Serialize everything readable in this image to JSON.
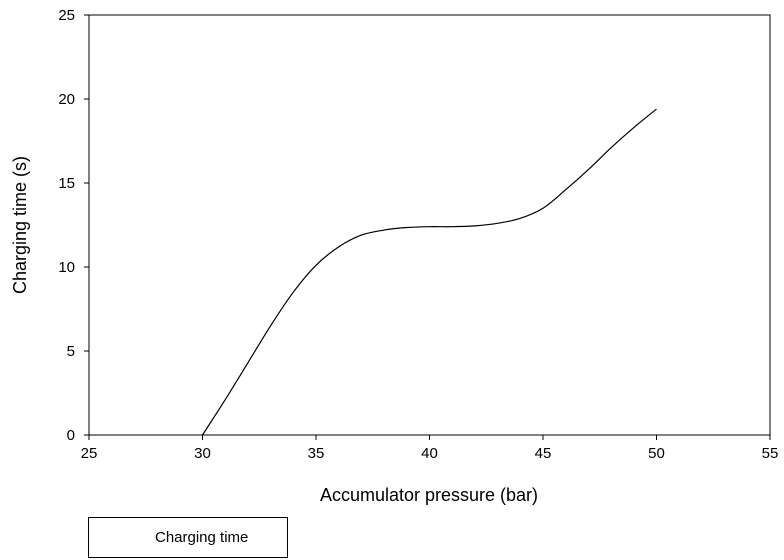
{
  "chart_data": {
    "type": "line",
    "title": "",
    "xlabel": "Accumulator pressure (bar)",
    "ylabel": "Charging time (s)",
    "xlim": [
      25,
      55
    ],
    "ylim": [
      0,
      25
    ],
    "xticks": [
      "25",
      "30",
      "35",
      "40",
      "45",
      "50",
      "55"
    ],
    "yticks": [
      "0",
      "5",
      "10",
      "15",
      "20",
      "25"
    ],
    "grid": false,
    "legend_position": "bottom-left",
    "series": [
      {
        "name": "Charging time",
        "color": "#000000",
        "x": [
          30,
          31,
          32,
          33,
          34,
          35,
          36,
          37,
          38,
          39,
          40,
          41,
          42,
          43,
          44,
          45,
          46,
          47,
          48,
          49,
          50
        ],
        "y": [
          0,
          2.1,
          4.3,
          6.5,
          8.5,
          10.1,
          11.2,
          11.9,
          12.2,
          12.35,
          12.4,
          12.4,
          12.45,
          12.6,
          12.9,
          13.5,
          14.6,
          15.8,
          17.1,
          18.3,
          19.4
        ]
      }
    ]
  }
}
